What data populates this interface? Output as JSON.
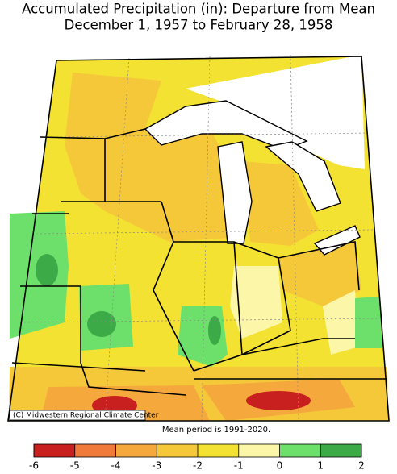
{
  "title": [
    "Accumulated Precipitation (in): Departure from Mean",
    "December 1, 1957 to February 28, 1958"
  ],
  "credit": "(C) Midwestern Regional Climate Center",
  "note": "Mean period is 1991-2020.",
  "legend": {
    "bins": [
      -6,
      -5,
      -4,
      -3,
      -2,
      -1,
      0,
      1,
      2
    ],
    "colors": [
      "#c8201e",
      "#f07a3a",
      "#f5a83c",
      "#f5c83a",
      "#f4e232",
      "#fcf6a8",
      "#6ce06a",
      "#3daa48"
    ]
  }
}
